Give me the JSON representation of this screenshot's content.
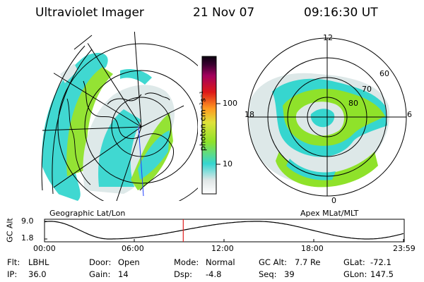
{
  "header": {
    "instrument": "Ultraviolet Imager",
    "date": "21 Nov 07",
    "time": "09:16:30 UT"
  },
  "left_map": {
    "caption": "Geographic Lat/Lon"
  },
  "right_map": {
    "caption": "Apex MLat/MLT",
    "mlt_labels": [
      "12",
      "18",
      "6",
      "0"
    ],
    "lat_labels": [
      "60",
      "70",
      "80"
    ]
  },
  "colorbar": {
    "unit_label": "photon cm⁻²s⁻¹",
    "ticks": [
      "100",
      "10"
    ],
    "colors": [
      "#dfe6e6",
      "#35d6d0",
      "#8fe22a",
      "#dfe23a",
      "#ff9a20",
      "#dd1818",
      "#a3005d",
      "#3a0030",
      "#0b0010"
    ]
  },
  "altitude_plot": {
    "ylabel": "GC Alt",
    "yticks": [
      "9.0",
      "1.8"
    ],
    "xticks": [
      "00:00",
      "06:00",
      "12:00",
      "18:00",
      "23:59"
    ],
    "current_marker_hour": 9.275,
    "apogee_hours": [
      0.4,
      14.2
    ],
    "perigee_hours": [
      4.3,
      21.6
    ]
  },
  "info": {
    "flt_label": "Flt:",
    "flt_value": "LBHL",
    "ip_label": "IP:",
    "ip_value": "36.0",
    "door_label": "Door:",
    "door_value": "Open",
    "gain_label": "Gain:",
    "gain_value": "14",
    "mode_label": "Mode:",
    "mode_value": "Normal",
    "dsp_label": "Dsp:",
    "dsp_value": "-4.8",
    "gcalt_label": "GC Alt:",
    "gcalt_value": "7.7 Re",
    "seq_label": "Seq:",
    "seq_value": "39",
    "glat_label": "GLat:",
    "glat_value": "-72.1",
    "glon_label": "GLon:",
    "glon_value": "147.5"
  }
}
